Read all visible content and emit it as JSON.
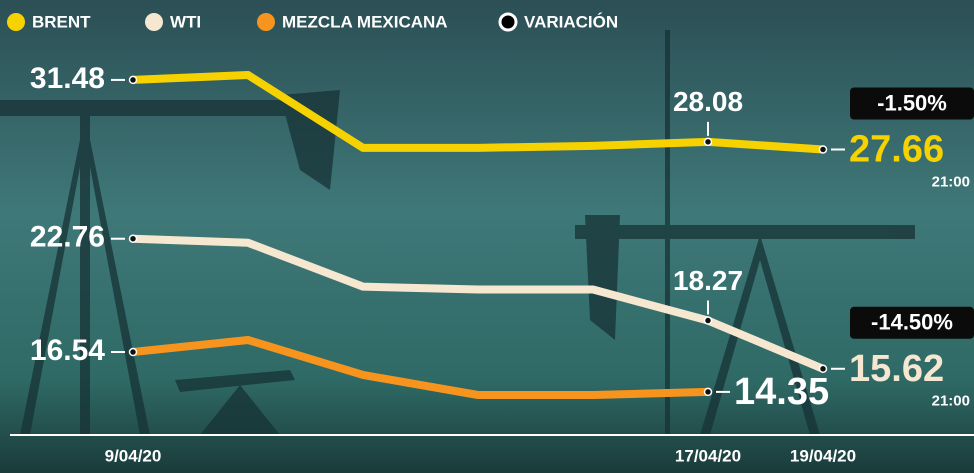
{
  "chart_data": {
    "type": "line",
    "categories": [
      "9/04/20",
      null,
      null,
      null,
      null,
      "17/04/20",
      "19/04/20"
    ],
    "series": [
      {
        "name": "BRENT",
        "color": "#f6d300",
        "values": [
          31.48,
          31.75,
          27.75,
          27.75,
          27.86,
          28.08,
          27.66
        ],
        "variation": "-1.50%",
        "time": "21:00"
      },
      {
        "name": "WTI",
        "color": "#f6e7d0",
        "values": [
          22.76,
          22.54,
          20.13,
          19.97,
          19.97,
          18.27,
          15.62
        ],
        "variation": "-14.50%",
        "time": "21:00"
      },
      {
        "name": "MEZCLA MEXICANA",
        "color": "#f7941d",
        "values": [
          16.54,
          17.2,
          15.28,
          14.18,
          14.18,
          14.35,
          null
        ]
      }
    ],
    "variation_legend": "VARIACIÓN"
  }
}
